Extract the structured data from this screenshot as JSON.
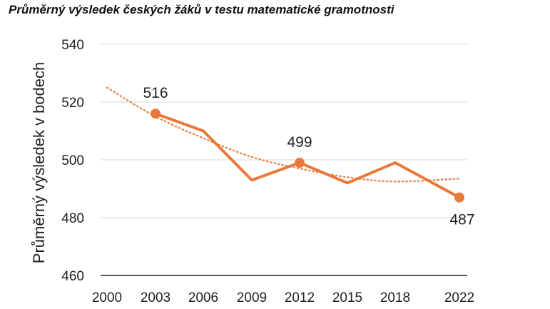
{
  "chart_data": {
    "type": "line",
    "title": "Průměrný výsledek českých žáků v testu matematické gramotnosti",
    "xlabel": "",
    "ylabel": "Průměrný výsledek v bodech",
    "ylim": [
      460,
      540
    ],
    "yticks": [
      "460",
      "480",
      "500",
      "520",
      "540"
    ],
    "xlim": [
      2000,
      2022
    ],
    "xticks": [
      "2000",
      "2003",
      "2006",
      "2009",
      "2012",
      "2015",
      "2018",
      "2022"
    ],
    "grid": true,
    "colors": {
      "series": "#e8793a",
      "trend": "#e8793a"
    },
    "series": [
      {
        "x": [
          2003,
          2006,
          2009,
          2012,
          2015,
          2018,
          2022
        ],
        "y": [
          516,
          510,
          493,
          499,
          492,
          499,
          487
        ],
        "markers": [
          2003,
          2012,
          2022
        ]
      }
    ],
    "trendline": {
      "style": "dotted",
      "x": [
        2000,
        2003,
        2006,
        2009,
        2012,
        2015,
        2018,
        2022
      ],
      "y": [
        525,
        515,
        507.5,
        501,
        497,
        494,
        492.5,
        493.5
      ]
    },
    "annotations": [
      {
        "x": 2003,
        "y": 516,
        "text": "516",
        "position": "above"
      },
      {
        "x": 2012,
        "y": 499,
        "text": "499",
        "position": "above"
      },
      {
        "x": 2022,
        "y": 487,
        "text": "487",
        "position": "below"
      }
    ]
  }
}
